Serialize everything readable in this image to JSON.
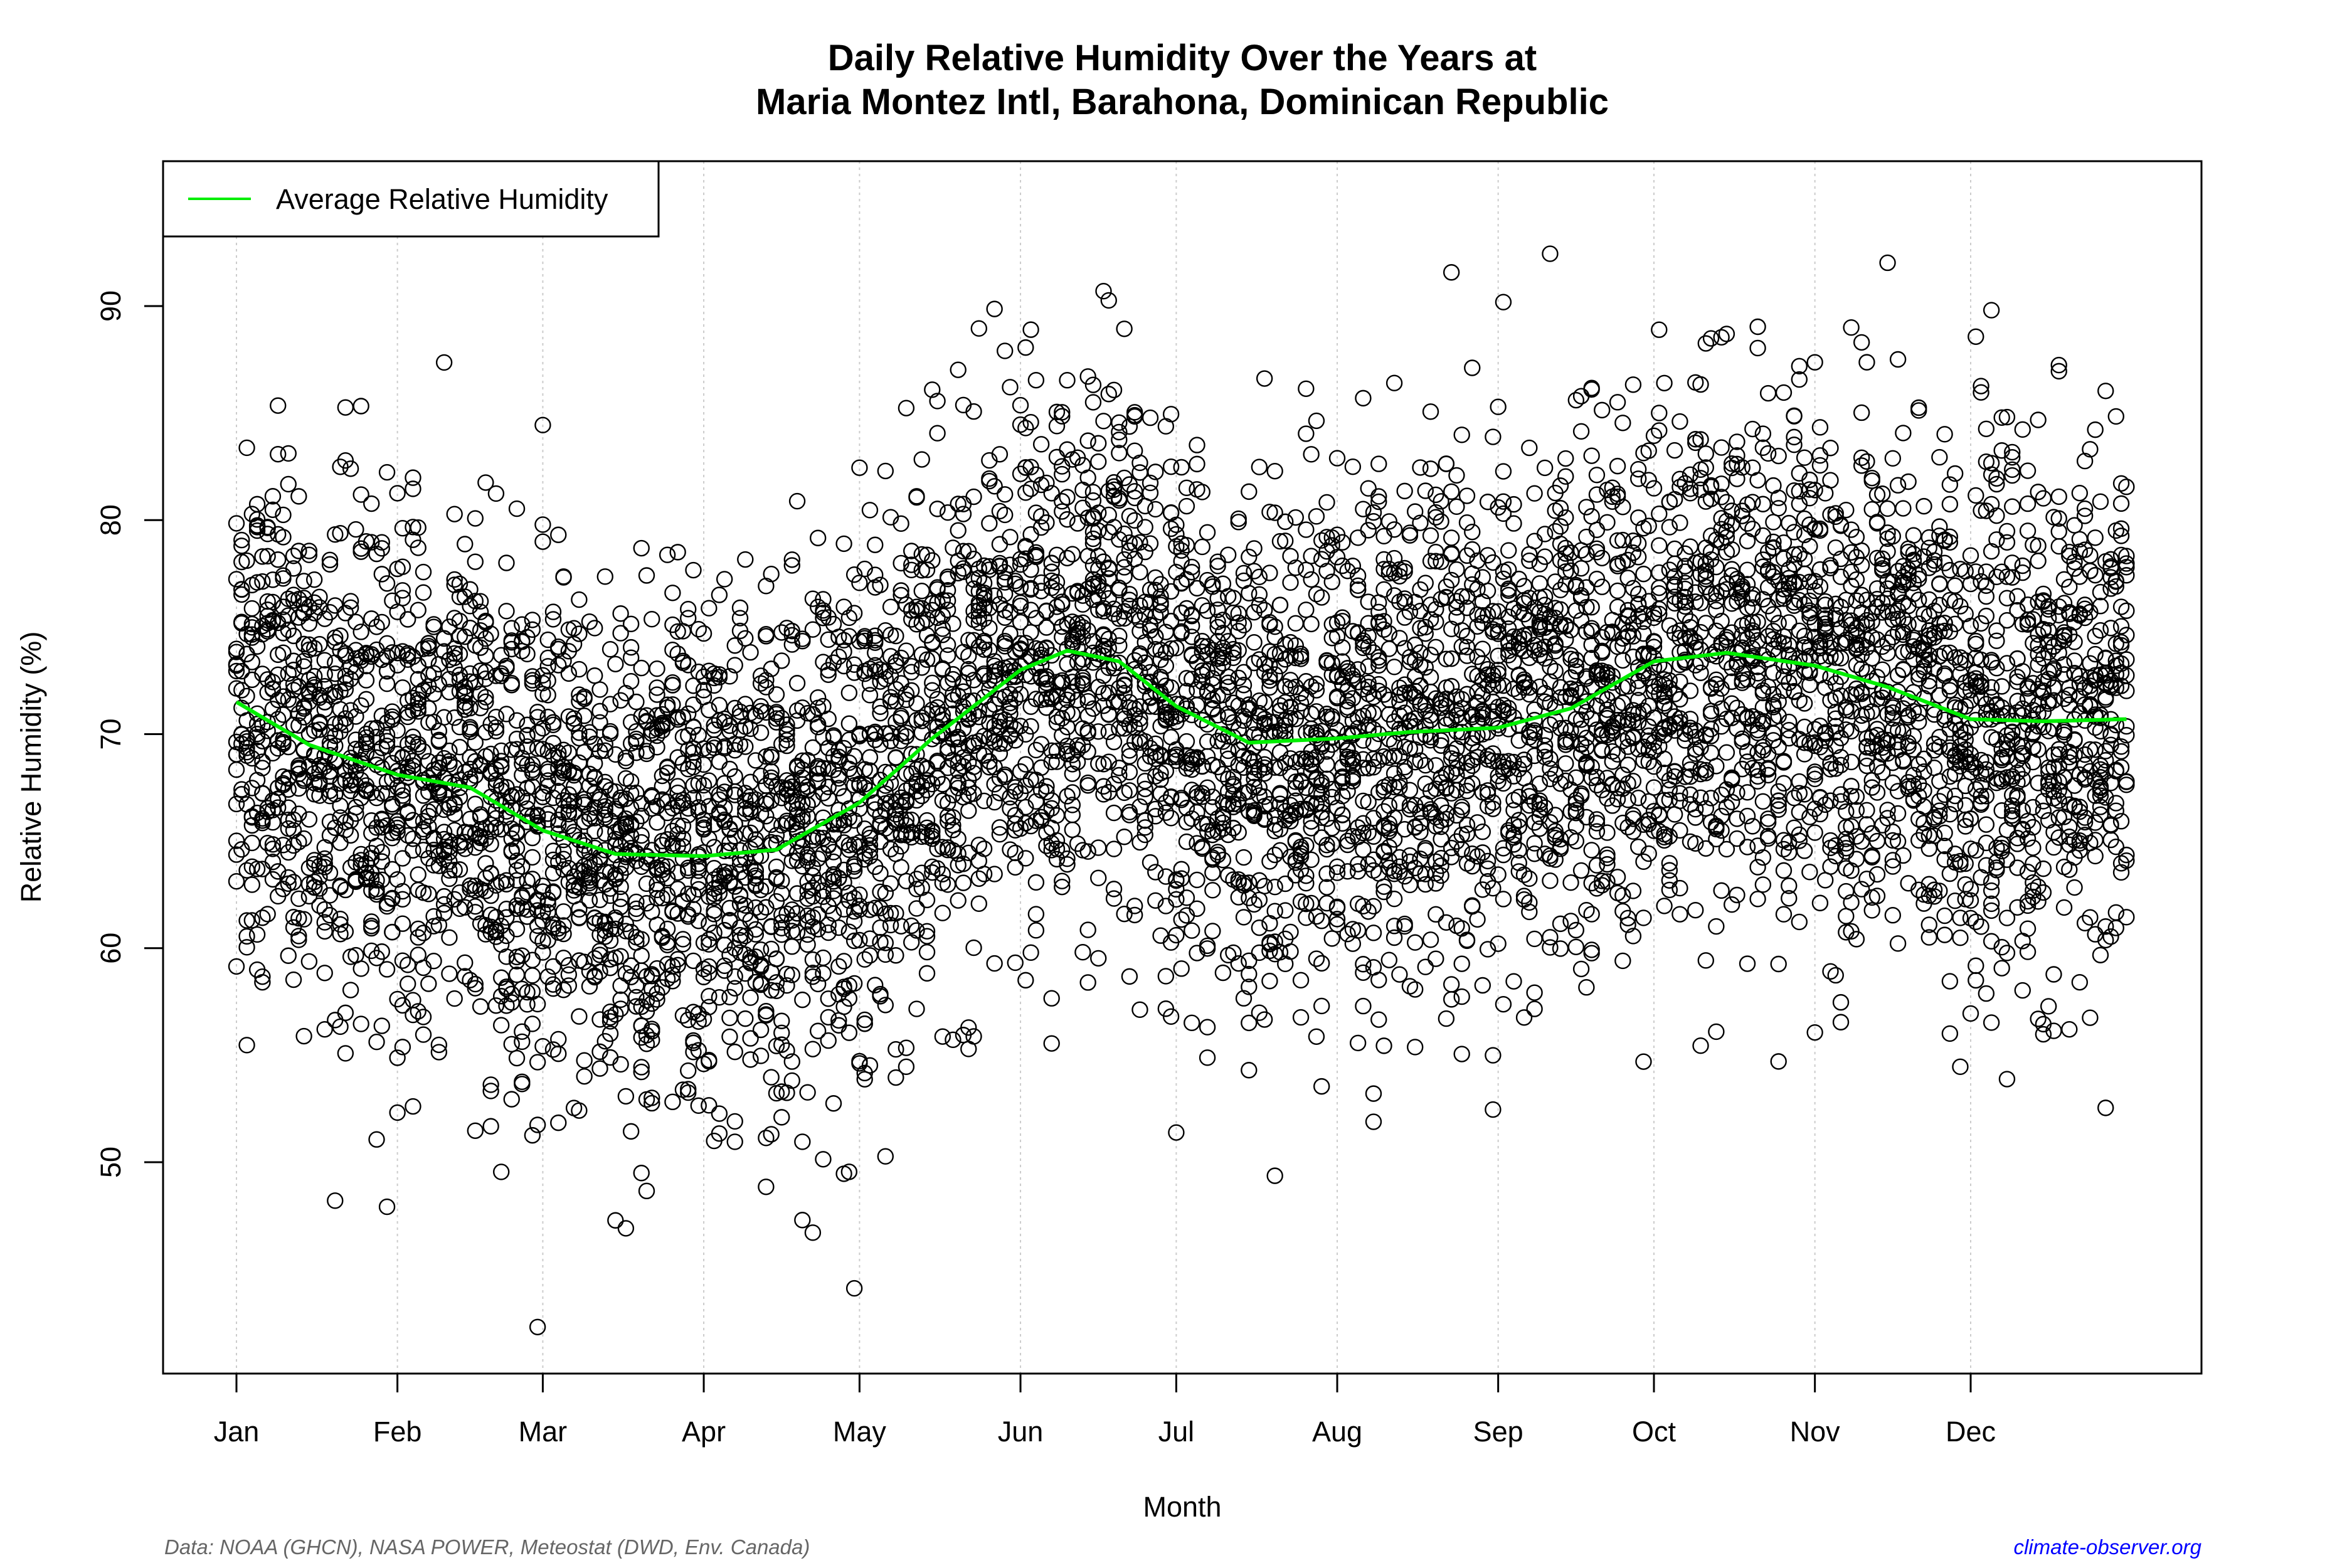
{
  "chart_data": {
    "type": "scatter",
    "title": [
      "Daily Relative Humidity Over the Years at",
      "Maria Montez Intl, Barahona, Dominican Republic"
    ],
    "xlabel": "Month",
    "ylabel": "Relative Humidity  (%)",
    "x_unit": "day of year",
    "xlim": [
      1,
      365
    ],
    "ylim": [
      40,
      96
    ],
    "x_ticks": [
      {
        "label": "Jan",
        "day": 1
      },
      {
        "label": "Feb",
        "day": 32
      },
      {
        "label": "Mar",
        "day": 60
      },
      {
        "label": "Apr",
        "day": 91
      },
      {
        "label": "May",
        "day": 121
      },
      {
        "label": "Jun",
        "day": 152
      },
      {
        "label": "Jul",
        "day": 182
      },
      {
        "label": "Aug",
        "day": 213
      },
      {
        "label": "Sep",
        "day": 244
      },
      {
        "label": "Oct",
        "day": 274
      },
      {
        "label": "Nov",
        "day": 305
      },
      {
        "label": "Dec",
        "day": 335
      }
    ],
    "y_ticks": [
      50,
      60,
      70,
      80,
      90
    ],
    "grid": "vertical dotted at month starts",
    "legend": {
      "position": "top-left",
      "entries": [
        {
          "label": "Average Relative Humidity",
          "color": "#00ee00"
        }
      ]
    },
    "scatter": {
      "marker": "open-circle",
      "color": "#000000",
      "y_min": 42.3,
      "y_max": 94.6,
      "spread_sd": 6
    },
    "average_curve": {
      "name": "Average Relative Humidity",
      "color": "#00ee00",
      "x": [
        1,
        15,
        32,
        46,
        60,
        74,
        91,
        105,
        121,
        135,
        152,
        161,
        171,
        182,
        196,
        213,
        227,
        244,
        258,
        274,
        288,
        305,
        319,
        335,
        349,
        365
      ],
      "y": [
        71.5,
        69.5,
        68.1,
        67.5,
        65.5,
        64.4,
        64.3,
        64.6,
        66.8,
        69.8,
        73.0,
        73.9,
        73.4,
        71.3,
        69.6,
        69.8,
        70.1,
        70.3,
        71.2,
        73.4,
        73.8,
        73.2,
        72.2,
        70.7,
        70.6,
        70.7
      ]
    }
  },
  "footer": {
    "source": "Data: NOAA (GHCN), NASA POWER, Meteostat (DWD, Env. Canada)",
    "site": "climate-observer.org",
    "site_color": "#0000ff"
  }
}
